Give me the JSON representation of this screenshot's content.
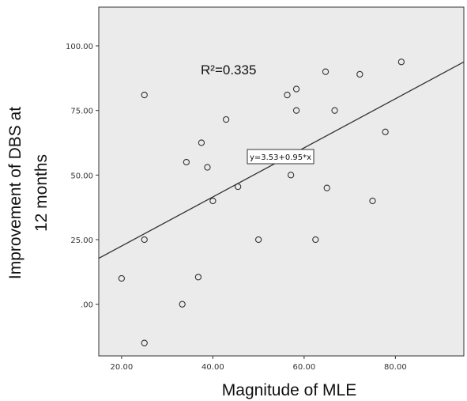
{
  "chart_data": {
    "type": "scatter",
    "title": "",
    "xlabel": "Magnitude of MLE",
    "ylabel_lines": [
      "Improvement of DBS at",
      "12 months"
    ],
    "xlim": [
      15,
      95
    ],
    "ylim": [
      -20,
      115
    ],
    "x_ticks": [
      20,
      40,
      60,
      80
    ],
    "x_tick_labels": [
      "20.00",
      "40.00",
      "60.00",
      "80.00"
    ],
    "y_ticks": [
      0,
      25,
      50,
      75,
      100
    ],
    "y_tick_labels": [
      ".00",
      "25.00",
      "50.00",
      "75.00",
      "100.00"
    ],
    "grid": false,
    "points": [
      {
        "x": 20.0,
        "y": 10.0
      },
      {
        "x": 25.0,
        "y": 81.0
      },
      {
        "x": 25.0,
        "y": 25.0
      },
      {
        "x": 25.0,
        "y": -15.0
      },
      {
        "x": 33.3,
        "y": 0.0
      },
      {
        "x": 34.2,
        "y": 55.0
      },
      {
        "x": 36.8,
        "y": 10.5
      },
      {
        "x": 37.5,
        "y": 62.5
      },
      {
        "x": 38.8,
        "y": 53.0
      },
      {
        "x": 40.0,
        "y": 40.0
      },
      {
        "x": 42.9,
        "y": 71.5
      },
      {
        "x": 45.5,
        "y": 45.5
      },
      {
        "x": 50.0,
        "y": 25.0
      },
      {
        "x": 56.3,
        "y": 81.0
      },
      {
        "x": 57.1,
        "y": 50.0
      },
      {
        "x": 58.3,
        "y": 83.3
      },
      {
        "x": 58.3,
        "y": 75.0
      },
      {
        "x": 62.5,
        "y": 25.0
      },
      {
        "x": 64.7,
        "y": 90.0
      },
      {
        "x": 65.0,
        "y": 45.0
      },
      {
        "x": 66.7,
        "y": 75.0
      },
      {
        "x": 72.2,
        "y": 89.0
      },
      {
        "x": 75.0,
        "y": 40.0
      },
      {
        "x": 77.8,
        "y": 66.7
      },
      {
        "x": 81.3,
        "y": 93.8
      }
    ],
    "fit_line": {
      "intercept": 3.53,
      "slope": 0.95
    },
    "r_squared_label": "R²=0.335",
    "equation_label": "y=3.53+0.95*x",
    "colors": {
      "plot_bg": "#ebebeb",
      "border": "#333333",
      "marker_stroke": "#333333",
      "line": "#333333"
    }
  }
}
